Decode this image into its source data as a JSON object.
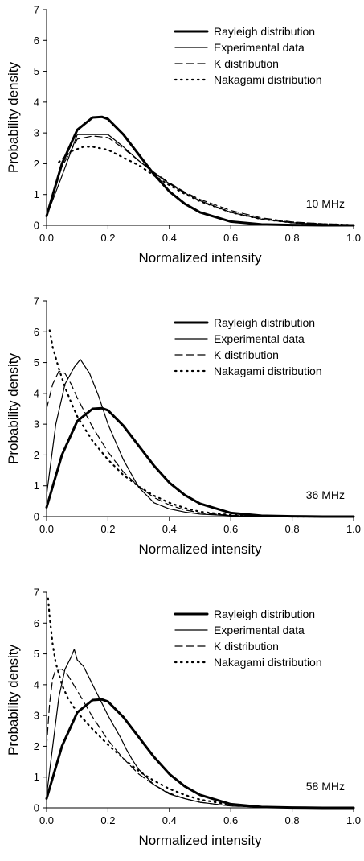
{
  "chart_data": [
    {
      "type": "line",
      "annotation": "10 MHz",
      "xlabel": "Normalized intensity",
      "ylabel": "Probability density",
      "xlim": [
        0.0,
        1.0
      ],
      "ylim": [
        0,
        7
      ],
      "xticks": [
        "0.0",
        "0.2",
        "0.4",
        "0.6",
        "0.8",
        "1.0"
      ],
      "yticks": [
        "0",
        "1",
        "2",
        "3",
        "4",
        "5",
        "6",
        "7"
      ],
      "legend_position": "top-right",
      "grid": false,
      "series": [
        {
          "name": "Rayleigh distribution",
          "style": "thick-solid",
          "x": [
            0.0,
            0.05,
            0.1,
            0.15,
            0.18,
            0.2,
            0.25,
            0.3,
            0.35,
            0.4,
            0.45,
            0.5,
            0.6,
            0.7,
            0.8,
            0.9,
            1.0
          ],
          "y": [
            0.3,
            2.0,
            3.1,
            3.5,
            3.52,
            3.45,
            2.95,
            2.3,
            1.65,
            1.1,
            0.7,
            0.42,
            0.12,
            0.03,
            0.01,
            0.0,
            0.0
          ]
        },
        {
          "name": "Experimental data",
          "style": "thin-solid",
          "x": [
            0.0,
            0.05,
            0.1,
            0.15,
            0.2,
            0.25,
            0.3,
            0.35,
            0.4,
            0.45,
            0.5,
            0.6,
            0.7,
            0.8,
            0.9,
            1.0
          ],
          "y": [
            0.3,
            1.6,
            2.95,
            2.95,
            2.95,
            2.55,
            2.1,
            1.7,
            1.35,
            1.05,
            0.8,
            0.42,
            0.2,
            0.08,
            0.03,
            0.01
          ]
        },
        {
          "name": "K distribution",
          "style": "dashed",
          "x": [
            0.02,
            0.05,
            0.1,
            0.15,
            0.2,
            0.25,
            0.3,
            0.35,
            0.4,
            0.45,
            0.5,
            0.6,
            0.7,
            0.8,
            0.9,
            1.0
          ],
          "y": [
            1.0,
            1.9,
            2.8,
            2.9,
            2.85,
            2.5,
            2.1,
            1.72,
            1.38,
            1.08,
            0.84,
            0.48,
            0.24,
            0.11,
            0.05,
            0.02
          ]
        },
        {
          "name": "Nakagami distribution",
          "style": "dotted",
          "x": [
            0.04,
            0.08,
            0.12,
            0.15,
            0.2,
            0.25,
            0.3,
            0.35,
            0.4,
            0.45,
            0.5,
            0.6,
            0.7,
            0.8,
            0.9,
            1.0
          ],
          "y": [
            2.05,
            2.4,
            2.55,
            2.55,
            2.45,
            2.2,
            1.95,
            1.62,
            1.3,
            1.02,
            0.78,
            0.42,
            0.2,
            0.09,
            0.04,
            0.01
          ]
        }
      ]
    },
    {
      "type": "line",
      "annotation": "36 MHz",
      "xlabel": "Normalized intensity",
      "ylabel": "Probability density",
      "xlim": [
        0.0,
        1.0
      ],
      "ylim": [
        0,
        7
      ],
      "xticks": [
        "0.0",
        "0.2",
        "0.4",
        "0.6",
        "0.8",
        "1.0"
      ],
      "yticks": [
        "0",
        "1",
        "2",
        "3",
        "4",
        "5",
        "6",
        "7"
      ],
      "legend_position": "top-right",
      "grid": false,
      "series": [
        {
          "name": "Rayleigh distribution",
          "style": "thick-solid",
          "x": [
            0.0,
            0.05,
            0.1,
            0.15,
            0.18,
            0.2,
            0.25,
            0.3,
            0.35,
            0.4,
            0.45,
            0.5,
            0.6,
            0.7,
            0.8,
            0.9,
            1.0
          ],
          "y": [
            0.3,
            2.0,
            3.1,
            3.5,
            3.52,
            3.45,
            2.95,
            2.3,
            1.65,
            1.1,
            0.7,
            0.42,
            0.12,
            0.03,
            0.01,
            0.0,
            0.0
          ]
        },
        {
          "name": "Experimental data",
          "style": "thin-solid",
          "x": [
            0.0,
            0.03,
            0.06,
            0.09,
            0.11,
            0.14,
            0.17,
            0.2,
            0.25,
            0.3,
            0.35,
            0.4,
            0.45,
            0.5,
            0.6,
            0.7,
            0.8,
            1.0
          ],
          "y": [
            0.7,
            3.0,
            4.3,
            4.85,
            5.1,
            4.65,
            3.9,
            3.0,
            1.85,
            0.95,
            0.45,
            0.25,
            0.15,
            0.08,
            0.03,
            0.01,
            0.0,
            0.0
          ]
        },
        {
          "name": "K distribution",
          "style": "dashed",
          "x": [
            0.0,
            0.02,
            0.04,
            0.06,
            0.08,
            0.1,
            0.15,
            0.2,
            0.25,
            0.3,
            0.35,
            0.4,
            0.45,
            0.5,
            0.6,
            0.7,
            0.8,
            1.0
          ],
          "y": [
            3.5,
            4.3,
            4.72,
            4.65,
            4.3,
            3.85,
            2.9,
            2.1,
            1.45,
            0.98,
            0.62,
            0.38,
            0.22,
            0.12,
            0.04,
            0.01,
            0.0,
            0.0
          ]
        },
        {
          "name": "Nakagami distribution",
          "style": "dotted",
          "x": [
            0.01,
            0.02,
            0.04,
            0.06,
            0.08,
            0.1,
            0.15,
            0.2,
            0.25,
            0.3,
            0.35,
            0.4,
            0.45,
            0.5,
            0.6,
            0.7,
            0.8,
            1.0
          ],
          "y": [
            6.05,
            5.5,
            4.8,
            4.2,
            3.7,
            3.25,
            2.45,
            1.85,
            1.35,
            0.98,
            0.68,
            0.45,
            0.28,
            0.16,
            0.05,
            0.01,
            0.0,
            0.0
          ]
        }
      ]
    },
    {
      "type": "line",
      "annotation": "58 MHz",
      "xlabel": "Normalized intensity",
      "ylabel": "Probability density",
      "xlim": [
        0.0,
        1.0
      ],
      "ylim": [
        0,
        7
      ],
      "xticks": [
        "0.0",
        "0.2",
        "0.4",
        "0.6",
        "0.8",
        "1.0"
      ],
      "yticks": [
        "0",
        "1",
        "2",
        "3",
        "4",
        "5",
        "6",
        "7"
      ],
      "legend_position": "top-right",
      "grid": false,
      "series": [
        {
          "name": "Rayleigh distribution",
          "style": "thick-solid",
          "x": [
            0.0,
            0.05,
            0.1,
            0.15,
            0.18,
            0.2,
            0.25,
            0.3,
            0.35,
            0.4,
            0.45,
            0.5,
            0.6,
            0.7,
            0.8,
            0.9,
            1.0
          ],
          "y": [
            0.3,
            2.0,
            3.1,
            3.5,
            3.52,
            3.45,
            2.95,
            2.3,
            1.65,
            1.1,
            0.7,
            0.42,
            0.12,
            0.03,
            0.01,
            0.0,
            0.0
          ]
        },
        {
          "name": "Experimental data",
          "style": "thin-solid",
          "x": [
            0.0,
            0.02,
            0.04,
            0.06,
            0.08,
            0.09,
            0.1,
            0.12,
            0.14,
            0.16,
            0.18,
            0.2,
            0.22,
            0.24,
            0.26,
            0.28,
            0.3,
            0.35,
            0.4,
            0.45,
            0.5,
            0.6,
            0.7,
            0.8,
            1.0
          ],
          "y": [
            0.4,
            2.0,
            3.6,
            4.5,
            4.9,
            5.15,
            4.8,
            4.6,
            4.2,
            3.8,
            3.4,
            3.0,
            2.65,
            2.3,
            1.9,
            1.55,
            1.25,
            0.75,
            0.45,
            0.3,
            0.18,
            0.06,
            0.02,
            0.0,
            0.0
          ]
        },
        {
          "name": "K distribution",
          "style": "dashed",
          "x": [
            0.0,
            0.01,
            0.02,
            0.03,
            0.05,
            0.07,
            0.1,
            0.15,
            0.2,
            0.25,
            0.3,
            0.35,
            0.4,
            0.45,
            0.5,
            0.6,
            0.7,
            0.8,
            1.0
          ],
          "y": [
            2.0,
            3.4,
            4.2,
            4.5,
            4.5,
            4.3,
            3.8,
            2.95,
            2.2,
            1.6,
            1.1,
            0.75,
            0.48,
            0.3,
            0.18,
            0.06,
            0.02,
            0.0,
            0.0
          ]
        },
        {
          "name": "Nakagami distribution",
          "style": "dotted",
          "x": [
            0.005,
            0.01,
            0.02,
            0.03,
            0.05,
            0.07,
            0.1,
            0.15,
            0.2,
            0.25,
            0.3,
            0.35,
            0.4,
            0.45,
            0.5,
            0.6,
            0.7,
            0.8,
            1.0
          ],
          "y": [
            6.8,
            6.2,
            5.3,
            4.7,
            4.0,
            3.55,
            3.1,
            2.55,
            2.05,
            1.6,
            1.2,
            0.88,
            0.62,
            0.42,
            0.27,
            0.1,
            0.03,
            0.01,
            0.0
          ]
        }
      ]
    }
  ]
}
